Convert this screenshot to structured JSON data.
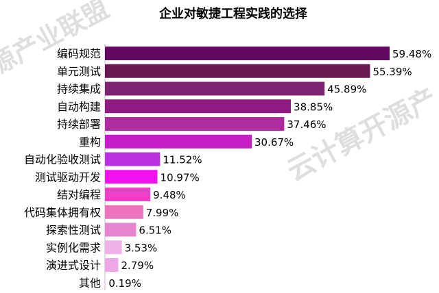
{
  "watermark": {
    "left": "源产业联盟",
    "right": "云计算开源产"
  },
  "chart_data": {
    "type": "bar",
    "orientation": "horizontal",
    "title": "企业对敏捷工程实践的选择",
    "xlabel": "",
    "ylabel": "",
    "xlim": [
      0,
      59.48
    ],
    "grid": false,
    "legend": "none",
    "categories": [
      "编码规范",
      "单元测试",
      "持续集成",
      "自动构建",
      "持续部署",
      "重构",
      "自动化验收测试",
      "测试驱动开发",
      "结对编程",
      "代码集体拥有权",
      "探索性测试",
      "实例化需求",
      "演进式设计",
      "其他"
    ],
    "values": [
      59.48,
      55.39,
      45.89,
      38.85,
      37.46,
      30.67,
      11.52,
      10.97,
      9.48,
      7.99,
      6.51,
      3.53,
      2.79,
      0.19
    ],
    "value_labels": [
      "59.48%",
      "55.39%",
      "45.89%",
      "38.85%",
      "37.46%",
      "30.67%",
      "11.52%",
      "10.97%",
      "9.48%",
      "7.99%",
      "6.51%",
      "3.53%",
      "2.79%",
      "0.19%"
    ],
    "colors": [
      "#620a62",
      "#6a1a52",
      "#7d2370",
      "#8e1a82",
      "#b02aa0",
      "#c71cc7",
      "#b830e0",
      "#f210ee",
      "#f03fc8",
      "#eb74bd",
      "#e784cf",
      "#f0b2e6",
      "#efa6e6",
      "#f0d8f0"
    ]
  }
}
